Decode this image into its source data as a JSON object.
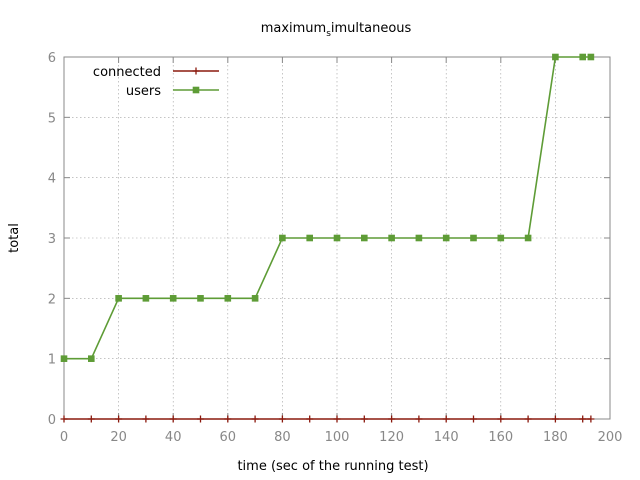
{
  "chart_data": {
    "type": "line",
    "title": {
      "before": "maximum",
      "subscript": "s",
      "after": "imultaneous"
    },
    "xlabel": "time (sec of the running test)",
    "ylabel": "total",
    "xlim": [
      0,
      200
    ],
    "ylim": [
      0,
      6
    ],
    "xticks": [
      0,
      20,
      40,
      60,
      80,
      100,
      120,
      140,
      160,
      180,
      200
    ],
    "yticks": [
      0,
      1,
      2,
      3,
      4,
      5,
      6
    ],
    "grid": true,
    "legend_position": "top-left",
    "series": [
      {
        "name": "connected",
        "color": "#8b1a0e",
        "marker": "plus",
        "x": [
          0,
          10,
          20,
          30,
          40,
          50,
          60,
          70,
          80,
          90,
          100,
          110,
          120,
          130,
          140,
          150,
          160,
          170,
          180,
          190,
          193
        ],
        "y": [
          0,
          0,
          0,
          0,
          0,
          0,
          0,
          0,
          0,
          0,
          0,
          0,
          0,
          0,
          0,
          0,
          0,
          0,
          0,
          0,
          0
        ]
      },
      {
        "name": "users",
        "color": "#5e9c36",
        "marker": "filled-square",
        "x": [
          0,
          10,
          20,
          30,
          40,
          50,
          60,
          70,
          80,
          90,
          100,
          110,
          120,
          130,
          140,
          150,
          160,
          170,
          180,
          190,
          193
        ],
        "y": [
          1,
          1,
          2,
          2,
          2,
          2,
          2,
          2,
          3,
          3,
          3,
          3,
          3,
          3,
          3,
          3,
          3,
          3,
          6,
          6,
          6
        ]
      }
    ]
  }
}
